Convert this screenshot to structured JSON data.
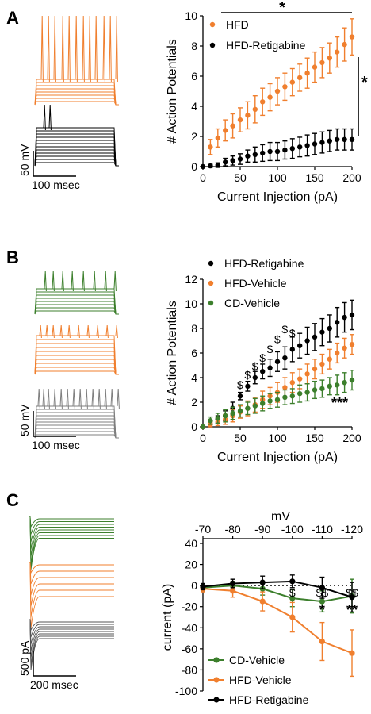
{
  "colors": {
    "hfd": "#F07F2E",
    "retigabine": "#000000",
    "cd": "#3C7F2C",
    "gray": "#7F7F7F"
  },
  "panels": {
    "A": {
      "letter": "A",
      "scalebar": {
        "v_label": "50 mV",
        "h_label": "100 msec"
      },
      "chart_data": {
        "type": "scatter",
        "xlabel": "Current Injection (pA)",
        "ylabel": "# Action  Potentials",
        "xlim": [
          0,
          200
        ],
        "ylim": [
          0,
          10
        ],
        "xticks": [
          0,
          50,
          100,
          150,
          200
        ],
        "yticks": [
          0,
          2,
          4,
          6,
          8,
          10
        ],
        "series": [
          {
            "name": "HFD",
            "color": "#F07F2E",
            "x": [
              10,
              20,
              30,
              40,
              50,
              60,
              70,
              80,
              90,
              100,
              110,
              120,
              130,
              140,
              150,
              160,
              170,
              180,
              190,
              200
            ],
            "y": [
              1.3,
              1.9,
              2.4,
              2.7,
              3.1,
              3.4,
              3.8,
              4.3,
              4.6,
              5.0,
              5.3,
              5.6,
              5.9,
              6.2,
              6.6,
              6.9,
              7.2,
              7.6,
              8.1,
              8.6
            ],
            "err": [
              0.5,
              0.6,
              0.7,
              0.8,
              0.8,
              0.9,
              0.9,
              0.9,
              0.9,
              0.9,
              0.9,
              0.9,
              0.9,
              1.0,
              1.0,
              1.0,
              1.0,
              1.0,
              1.1,
              1.2
            ]
          },
          {
            "name": "HFD-Retigabine",
            "color": "#000000",
            "x": [
              0,
              10,
              20,
              30,
              40,
              50,
              60,
              70,
              80,
              90,
              100,
              110,
              120,
              130,
              140,
              150,
              160,
              170,
              180,
              190,
              200
            ],
            "y": [
              0,
              0.05,
              0.1,
              0.3,
              0.4,
              0.5,
              0.7,
              0.8,
              0.9,
              1.0,
              1.0,
              1.1,
              1.2,
              1.3,
              1.4,
              1.5,
              1.6,
              1.7,
              1.8,
              1.8,
              1.8
            ],
            "err": [
              0,
              0.1,
              0.15,
              0.25,
              0.3,
              0.35,
              0.4,
              0.5,
              0.55,
              0.6,
              0.6,
              0.6,
              0.65,
              0.65,
              0.7,
              0.7,
              0.7,
              0.7,
              0.7,
              0.7,
              0.7
            ]
          }
        ],
        "annotations": [
          "*",
          "*"
        ]
      }
    },
    "B": {
      "letter": "B",
      "scalebar": {
        "v_label": "50 mV",
        "h_label": "100 msec"
      },
      "chart_data": {
        "type": "scatter",
        "xlabel": "Current Injection (pA)",
        "ylabel": "# Action Potentials",
        "xlim": [
          0,
          200
        ],
        "ylim": [
          0,
          12
        ],
        "xticks": [
          0,
          50,
          100,
          150,
          200
        ],
        "yticks": [
          0,
          2,
          4,
          6,
          8,
          10,
          12
        ],
        "series": [
          {
            "name": "HFD-Retigabine",
            "color": "#000000",
            "x": [
              0,
              10,
              20,
              30,
              40,
              50,
              60,
              70,
              80,
              90,
              100,
              110,
              120,
              130,
              140,
              150,
              160,
              170,
              180,
              190,
              200
            ],
            "y": [
              0,
              0.2,
              0.6,
              0.9,
              1.5,
              2.5,
              3.3,
              4.0,
              4.5,
              4.8,
              5.3,
              5.6,
              6.3,
              6.6,
              7.0,
              7.3,
              7.7,
              8.0,
              8.5,
              8.9,
              9.1
            ],
            "err": [
              0,
              0.2,
              0.3,
              0.4,
              0.5,
              0.3,
              0.4,
              0.5,
              0.6,
              0.7,
              0.8,
              0.9,
              1.0,
              1.0,
              1.1,
              1.1,
              1.1,
              1.1,
              1.2,
              1.2,
              1.2
            ]
          },
          {
            "name": "HFD-Vehicle",
            "color": "#F07F2E",
            "x": [
              0,
              10,
              20,
              30,
              40,
              50,
              60,
              70,
              80,
              90,
              100,
              110,
              120,
              130,
              140,
              150,
              160,
              170,
              180,
              190,
              200
            ],
            "y": [
              0,
              0.2,
              0.4,
              0.6,
              0.9,
              1.2,
              1.5,
              1.8,
              2.2,
              2.5,
              2.8,
              3.2,
              3.6,
              3.9,
              4.3,
              4.7,
              5.1,
              5.5,
              6.0,
              6.4,
              6.7
            ],
            "err": [
              0,
              0.2,
              0.3,
              0.4,
              0.5,
              0.5,
              0.6,
              0.6,
              0.7,
              0.7,
              0.8,
              0.8,
              0.8,
              0.8,
              0.8,
              0.8,
              0.8,
              0.8,
              0.8,
              0.8,
              0.8
            ]
          },
          {
            "name": "CD-Vehicle",
            "color": "#3C7F2C",
            "x": [
              0,
              10,
              20,
              30,
              40,
              50,
              60,
              70,
              80,
              90,
              100,
              110,
              120,
              130,
              140,
              150,
              160,
              170,
              180,
              190,
              200
            ],
            "y": [
              0,
              0.5,
              0.7,
              0.9,
              1.1,
              1.3,
              1.5,
              1.7,
              1.9,
              2.1,
              2.2,
              2.4,
              2.5,
              2.7,
              2.8,
              3.0,
              3.1,
              3.3,
              3.4,
              3.6,
              3.8
            ],
            "err": [
              0,
              0.3,
              0.4,
              0.5,
              0.5,
              0.5,
              0.5,
              0.6,
              0.6,
              0.6,
              0.6,
              0.6,
              0.6,
              0.7,
              0.7,
              0.7,
              0.7,
              0.7,
              0.8,
              0.8,
              0.8
            ]
          }
        ],
        "dollar_marks": [
          {
            "x": 50,
            "y": 3.1
          },
          {
            "x": 60,
            "y": 3.9
          },
          {
            "x": 70,
            "y": 4.6
          },
          {
            "x": 80,
            "y": 5.3
          },
          {
            "x": 90,
            "y": 6.0
          },
          {
            "x": 100,
            "y": 6.8
          },
          {
            "x": 110,
            "y": 7.6
          },
          {
            "x": 120,
            "y": 7.3
          }
        ],
        "dollar_text": "$",
        "stars_text": "***"
      }
    },
    "C": {
      "letter": "C",
      "scalebar": {
        "v_label": "500 pA",
        "h_label": "200 msec"
      },
      "chart_data": {
        "type": "line",
        "x_top_label": "mV",
        "ylabel": "current (pA)",
        "categories": [
          "-70",
          "-80",
          "-90",
          "-100",
          "-110",
          "-120"
        ],
        "ylim": [
          -100,
          40
        ],
        "yticks": [
          40,
          20,
          0,
          -20,
          -40,
          -60,
          -80,
          -100
        ],
        "series": [
          {
            "name": "CD-Vehicle",
            "color": "#3C7F2C",
            "values": [
              -2,
              0,
              -3,
              -12,
              -15,
              -10
            ],
            "err": [
              3,
              4,
              6,
              8,
              10,
              16
            ]
          },
          {
            "name": "HFD-Vehicle",
            "color": "#F07F2E",
            "values": [
              -3,
              -5,
              -15,
              -30,
              -53,
              -64
            ],
            "err": [
              3,
              6,
              9,
              14,
              18,
              22
            ]
          },
          {
            "name": "HFD-Retigabine",
            "color": "#000000",
            "values": [
              -1,
              2,
              3,
              4,
              -2,
              -11
            ],
            "err": [
              3,
              4,
              6,
              6,
              10,
              14
            ]
          }
        ],
        "sig_top": [
          "$",
          "$$",
          "$$"
        ],
        "sig_bottom": [
          "*",
          "**"
        ]
      }
    }
  }
}
